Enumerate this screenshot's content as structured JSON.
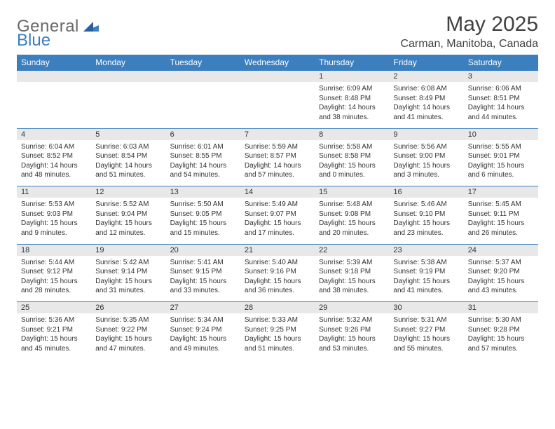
{
  "logo": {
    "word1": "General",
    "word2": "Blue"
  },
  "title": "May 2025",
  "subtitle": "Carman, Manitoba, Canada",
  "colors": {
    "header_bg": "#3b7fbf",
    "header_text": "#ffffff",
    "daynum_bg": "#e8e8e8",
    "border": "#3b7fbf",
    "logo_gray": "#6a6a6a",
    "logo_blue": "#3b7fbf"
  },
  "day_headers": [
    "Sunday",
    "Monday",
    "Tuesday",
    "Wednesday",
    "Thursday",
    "Friday",
    "Saturday"
  ],
  "weeks": [
    [
      null,
      null,
      null,
      null,
      {
        "n": "1",
        "sr": "6:09 AM",
        "ss": "8:48 PM",
        "dl": "14 hours and 38 minutes."
      },
      {
        "n": "2",
        "sr": "6:08 AM",
        "ss": "8:49 PM",
        "dl": "14 hours and 41 minutes."
      },
      {
        "n": "3",
        "sr": "6:06 AM",
        "ss": "8:51 PM",
        "dl": "14 hours and 44 minutes."
      }
    ],
    [
      {
        "n": "4",
        "sr": "6:04 AM",
        "ss": "8:52 PM",
        "dl": "14 hours and 48 minutes."
      },
      {
        "n": "5",
        "sr": "6:03 AM",
        "ss": "8:54 PM",
        "dl": "14 hours and 51 minutes."
      },
      {
        "n": "6",
        "sr": "6:01 AM",
        "ss": "8:55 PM",
        "dl": "14 hours and 54 minutes."
      },
      {
        "n": "7",
        "sr": "5:59 AM",
        "ss": "8:57 PM",
        "dl": "14 hours and 57 minutes."
      },
      {
        "n": "8",
        "sr": "5:58 AM",
        "ss": "8:58 PM",
        "dl": "15 hours and 0 minutes."
      },
      {
        "n": "9",
        "sr": "5:56 AM",
        "ss": "9:00 PM",
        "dl": "15 hours and 3 minutes."
      },
      {
        "n": "10",
        "sr": "5:55 AM",
        "ss": "9:01 PM",
        "dl": "15 hours and 6 minutes."
      }
    ],
    [
      {
        "n": "11",
        "sr": "5:53 AM",
        "ss": "9:03 PM",
        "dl": "15 hours and 9 minutes."
      },
      {
        "n": "12",
        "sr": "5:52 AM",
        "ss": "9:04 PM",
        "dl": "15 hours and 12 minutes."
      },
      {
        "n": "13",
        "sr": "5:50 AM",
        "ss": "9:05 PM",
        "dl": "15 hours and 15 minutes."
      },
      {
        "n": "14",
        "sr": "5:49 AM",
        "ss": "9:07 PM",
        "dl": "15 hours and 17 minutes."
      },
      {
        "n": "15",
        "sr": "5:48 AM",
        "ss": "9:08 PM",
        "dl": "15 hours and 20 minutes."
      },
      {
        "n": "16",
        "sr": "5:46 AM",
        "ss": "9:10 PM",
        "dl": "15 hours and 23 minutes."
      },
      {
        "n": "17",
        "sr": "5:45 AM",
        "ss": "9:11 PM",
        "dl": "15 hours and 26 minutes."
      }
    ],
    [
      {
        "n": "18",
        "sr": "5:44 AM",
        "ss": "9:12 PM",
        "dl": "15 hours and 28 minutes."
      },
      {
        "n": "19",
        "sr": "5:42 AM",
        "ss": "9:14 PM",
        "dl": "15 hours and 31 minutes."
      },
      {
        "n": "20",
        "sr": "5:41 AM",
        "ss": "9:15 PM",
        "dl": "15 hours and 33 minutes."
      },
      {
        "n": "21",
        "sr": "5:40 AM",
        "ss": "9:16 PM",
        "dl": "15 hours and 36 minutes."
      },
      {
        "n": "22",
        "sr": "5:39 AM",
        "ss": "9:18 PM",
        "dl": "15 hours and 38 minutes."
      },
      {
        "n": "23",
        "sr": "5:38 AM",
        "ss": "9:19 PM",
        "dl": "15 hours and 41 minutes."
      },
      {
        "n": "24",
        "sr": "5:37 AM",
        "ss": "9:20 PM",
        "dl": "15 hours and 43 minutes."
      }
    ],
    [
      {
        "n": "25",
        "sr": "5:36 AM",
        "ss": "9:21 PM",
        "dl": "15 hours and 45 minutes."
      },
      {
        "n": "26",
        "sr": "5:35 AM",
        "ss": "9:22 PM",
        "dl": "15 hours and 47 minutes."
      },
      {
        "n": "27",
        "sr": "5:34 AM",
        "ss": "9:24 PM",
        "dl": "15 hours and 49 minutes."
      },
      {
        "n": "28",
        "sr": "5:33 AM",
        "ss": "9:25 PM",
        "dl": "15 hours and 51 minutes."
      },
      {
        "n": "29",
        "sr": "5:32 AM",
        "ss": "9:26 PM",
        "dl": "15 hours and 53 minutes."
      },
      {
        "n": "30",
        "sr": "5:31 AM",
        "ss": "9:27 PM",
        "dl": "15 hours and 55 minutes."
      },
      {
        "n": "31",
        "sr": "5:30 AM",
        "ss": "9:28 PM",
        "dl": "15 hours and 57 minutes."
      }
    ]
  ],
  "labels": {
    "sunrise": "Sunrise:",
    "sunset": "Sunset:",
    "daylight": "Daylight:"
  }
}
